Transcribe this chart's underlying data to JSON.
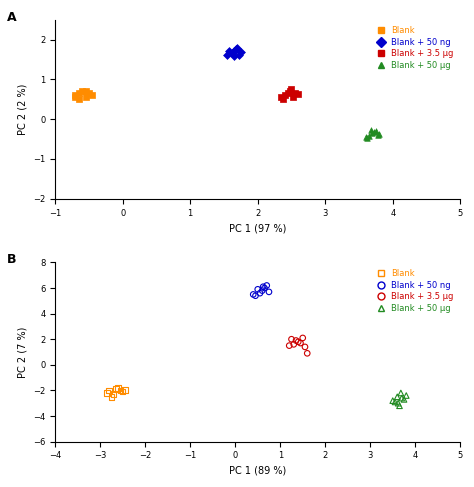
{
  "panel_A": {
    "title": "A",
    "xlabel": "PC 1 (97 %)",
    "ylabel": "PC 2 (2 %)",
    "xlim": [
      -1,
      5
    ],
    "ylim": [
      -2,
      2.5
    ],
    "xticks": [
      -1,
      0,
      1,
      2,
      3,
      4,
      5
    ],
    "yticks": [
      -2,
      -1,
      0,
      1,
      2
    ],
    "groups": {
      "Blank": {
        "color": "#FF8C00",
        "marker": "s",
        "filled": true,
        "x": [
          -0.7,
          -0.65,
          -0.55,
          -0.5,
          -0.7,
          -0.6,
          -0.55,
          -0.65,
          -0.45
        ],
        "y": [
          0.55,
          0.65,
          0.7,
          0.65,
          0.6,
          0.7,
          0.55,
          0.5,
          0.6
        ]
      },
      "Blank + 50 ng": {
        "color": "#0000CC",
        "marker": "D",
        "filled": true,
        "x": [
          1.55,
          1.65,
          1.7,
          1.75,
          1.62,
          1.68,
          1.58,
          1.72,
          1.65
        ],
        "y": [
          1.62,
          1.72,
          1.78,
          1.68,
          1.65,
          1.75,
          1.7,
          1.6,
          1.58
        ]
      },
      "Blank + 3.5 µg": {
        "color": "#CC0000",
        "marker": "s",
        "filled": true,
        "x": [
          2.35,
          2.45,
          2.5,
          2.55,
          2.4,
          2.48,
          2.38,
          2.52,
          2.6
        ],
        "y": [
          0.55,
          0.65,
          0.75,
          0.65,
          0.6,
          0.7,
          0.5,
          0.55,
          0.62
        ]
      },
      "Blank + 50 µg": {
        "color": "#228B22",
        "marker": "^",
        "filled": true,
        "x": [
          3.6,
          3.7,
          3.75,
          3.65,
          3.8,
          3.68,
          3.72,
          3.62,
          3.78
        ],
        "y": [
          -0.45,
          -0.35,
          -0.3,
          -0.42,
          -0.38,
          -0.28,
          -0.32,
          -0.48,
          -0.4
        ]
      }
    }
  },
  "panel_B": {
    "title": "B",
    "xlabel": "PC 1 (89 %)",
    "ylabel": "PC 2 (7 %)",
    "xlim": [
      -4,
      5
    ],
    "ylim": [
      -6,
      8
    ],
    "xticks": [
      -4,
      -3,
      -2,
      -1,
      0,
      1,
      2,
      3,
      4,
      5
    ],
    "yticks": [
      -6,
      -4,
      -2,
      0,
      2,
      4,
      6,
      8
    ],
    "groups": {
      "Blank": {
        "color": "#FF8C00",
        "marker": "s",
        "filled": false,
        "x": [
          -2.8,
          -2.6,
          -2.5,
          -2.7,
          -2.85,
          -2.65,
          -2.55,
          -2.75,
          -2.45
        ],
        "y": [
          -2.0,
          -1.8,
          -2.1,
          -2.3,
          -2.2,
          -1.9,
          -2.0,
          -2.5,
          -1.95
        ]
      },
      "Blank + 50 ng": {
        "color": "#0000CC",
        "marker": "o",
        "filled": false,
        "x": [
          0.4,
          0.6,
          0.7,
          0.5,
          0.65,
          0.55,
          0.75,
          0.45,
          0.62
        ],
        "y": [
          5.5,
          5.8,
          6.2,
          5.9,
          6.0,
          5.6,
          5.7,
          5.4,
          6.1
        ]
      },
      "Blank + 3.5 µg": {
        "color": "#CC0000",
        "marker": "o",
        "filled": false,
        "x": [
          1.2,
          1.4,
          1.5,
          1.3,
          1.45,
          1.35,
          1.25,
          1.55,
          1.6
        ],
        "y": [
          1.5,
          1.8,
          2.1,
          1.6,
          1.7,
          1.9,
          2.0,
          1.4,
          0.9
        ]
      },
      "Blank + 50 µg": {
        "color": "#228B22",
        "marker": "^",
        "filled": false,
        "x": [
          3.5,
          3.6,
          3.7,
          3.65,
          3.75,
          3.55,
          3.8,
          3.62,
          3.68
        ],
        "y": [
          -2.8,
          -2.5,
          -2.6,
          -3.2,
          -2.7,
          -2.9,
          -2.4,
          -3.0,
          -2.2
        ]
      }
    }
  },
  "bg_color": "#FFFFFF",
  "font_size": 7,
  "marker_size": 4
}
